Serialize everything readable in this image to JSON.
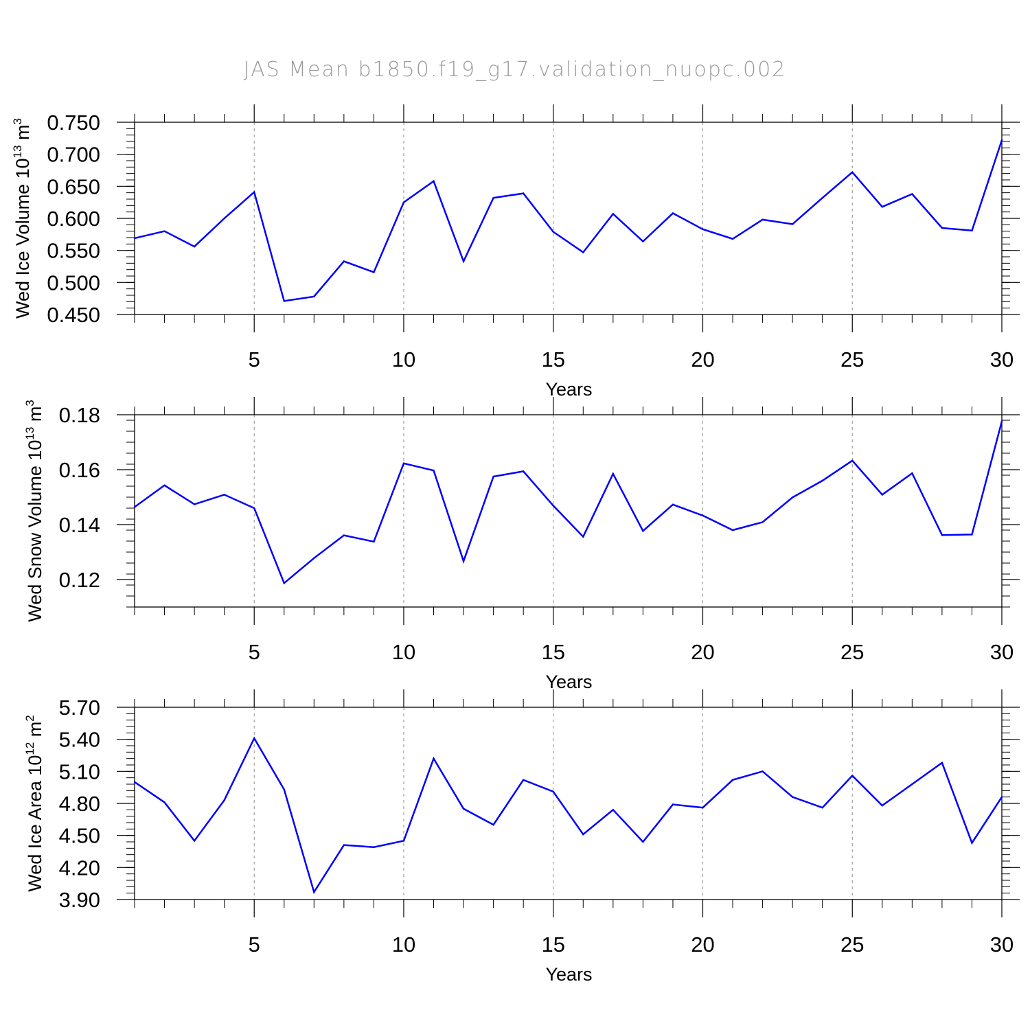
{
  "title": "JAS Mean b1850.f19_g17.validation_nuopc.002",
  "colors": {
    "line": "#0000ff",
    "axis": "#000000",
    "grid": "#8c8c8c",
    "title": "#9a9a9a"
  },
  "chart_data": [
    {
      "type": "line",
      "ylabel_text": "Wed Ice Volume 10",
      "ylabel_exp": "13",
      "ylabel_unit": " m",
      "ylabel_unit_exp": "3",
      "xlabel": "Years",
      "xlim": [
        1,
        30
      ],
      "ylim": [
        0.45,
        0.75
      ],
      "yticks": [
        0.45,
        0.5,
        0.55,
        0.6,
        0.65,
        0.7,
        0.75
      ],
      "ytick_labels": [
        "0.450",
        "0.500",
        "0.550",
        "0.600",
        "0.650",
        "0.700",
        "0.750"
      ],
      "yminor_step": 0.01,
      "xticks": [
        5,
        10,
        15,
        20,
        25,
        30
      ],
      "xtick_labels": [
        "5",
        "10",
        "15",
        "20",
        "25",
        "30"
      ],
      "grid": true,
      "x": [
        1,
        2,
        3,
        4,
        5,
        6,
        7,
        8,
        9,
        10,
        11,
        12,
        13,
        14,
        15,
        16,
        17,
        18,
        19,
        20,
        21,
        22,
        23,
        24,
        25,
        26,
        27,
        28,
        29,
        30
      ],
      "series": [
        {
          "name": "Wed Ice Volume",
          "values": [
            0.569,
            0.58,
            0.556,
            0.6,
            0.641,
            0.471,
            0.478,
            0.533,
            0.516,
            0.625,
            0.658,
            0.533,
            0.632,
            0.639,
            0.579,
            0.547,
            0.607,
            0.564,
            0.608,
            0.583,
            0.568,
            0.598,
            0.591,
            0.632,
            0.672,
            0.618,
            0.638,
            0.585,
            0.581,
            0.722
          ]
        }
      ]
    },
    {
      "type": "line",
      "ylabel_text": "Wed Snow Volume 10",
      "ylabel_exp": "13",
      "ylabel_unit": " m",
      "ylabel_unit_exp": "3",
      "xlabel": "Years",
      "xlim": [
        1,
        30
      ],
      "ylim": [
        0.11,
        0.18
      ],
      "yticks": [
        0.12,
        0.14,
        0.16,
        0.18
      ],
      "ytick_labels": [
        "0.12",
        "0.14",
        "0.16",
        "0.18"
      ],
      "yminor_step": 0.004,
      "xticks": [
        5,
        10,
        15,
        20,
        25,
        30
      ],
      "xtick_labels": [
        "5",
        "10",
        "15",
        "20",
        "25",
        "30"
      ],
      "grid": true,
      "x": [
        1,
        2,
        3,
        4,
        5,
        6,
        7,
        8,
        9,
        10,
        11,
        12,
        13,
        14,
        15,
        16,
        17,
        18,
        19,
        20,
        21,
        22,
        23,
        24,
        25,
        26,
        27,
        28,
        29,
        30
      ],
      "series": [
        {
          "name": "Wed Snow Volume",
          "values": [
            0.1464,
            0.1543,
            0.1474,
            0.1509,
            0.146,
            0.1187,
            0.1278,
            0.1361,
            0.1338,
            0.1623,
            0.1597,
            0.1267,
            0.1575,
            0.1594,
            0.1469,
            0.1356,
            0.1585,
            0.1377,
            0.1473,
            0.1433,
            0.138,
            0.1409,
            0.1499,
            0.156,
            0.1633,
            0.1509,
            0.1587,
            0.1362,
            0.1364,
            0.1776
          ]
        }
      ]
    },
    {
      "type": "line",
      "ylabel_text": "Wed Ice Area 10",
      "ylabel_exp": "12",
      "ylabel_unit": " m",
      "ylabel_unit_exp": "2",
      "xlabel": "Years",
      "xlim": [
        1,
        30
      ],
      "ylim": [
        3.9,
        5.7
      ],
      "yticks": [
        3.9,
        4.2,
        4.5,
        4.8,
        5.1,
        5.4,
        5.7
      ],
      "ytick_labels": [
        "3.90",
        "4.20",
        "4.50",
        "4.80",
        "5.10",
        "5.40",
        "5.70"
      ],
      "yminor_step": 0.06,
      "xticks": [
        5,
        10,
        15,
        20,
        25,
        30
      ],
      "xtick_labels": [
        "5",
        "10",
        "15",
        "20",
        "25",
        "30"
      ],
      "grid": true,
      "x": [
        1,
        2,
        3,
        4,
        5,
        6,
        7,
        8,
        9,
        10,
        11,
        12,
        13,
        14,
        15,
        16,
        17,
        18,
        19,
        20,
        21,
        22,
        23,
        24,
        25,
        26,
        27,
        28,
        29,
        30
      ],
      "series": [
        {
          "name": "Wed Ice Area",
          "values": [
            5.0,
            4.81,
            4.45,
            4.83,
            5.41,
            4.93,
            3.97,
            4.41,
            4.39,
            4.45,
            5.22,
            4.75,
            4.6,
            5.02,
            4.91,
            4.51,
            4.74,
            4.44,
            4.79,
            4.76,
            5.02,
            5.1,
            4.86,
            4.76,
            5.06,
            4.78,
            4.98,
            5.18,
            4.43,
            4.86
          ]
        }
      ]
    }
  ]
}
